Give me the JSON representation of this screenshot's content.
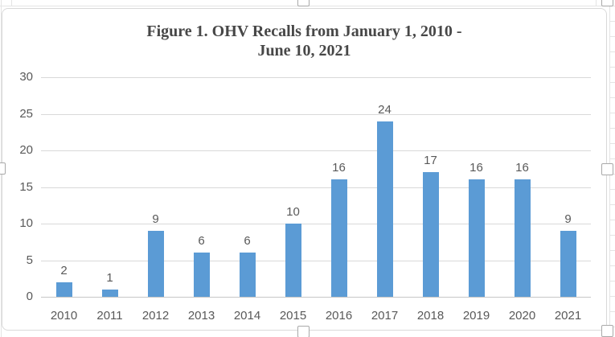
{
  "chart_data": {
    "type": "bar",
    "title": "Figure 1. OHV Recalls from January 1, 2010 - June 10, 2021",
    "title_lines": [
      "Figure 1. OHV Recalls from January 1, 2010 -",
      "June 10, 2021"
    ],
    "categories": [
      "2010",
      "2011",
      "2012",
      "2013",
      "2014",
      "2015",
      "2016",
      "2017",
      "2018",
      "2019",
      "2020",
      "2021"
    ],
    "values": [
      2,
      1,
      9,
      6,
      6,
      10,
      16,
      24,
      17,
      16,
      16,
      9
    ],
    "y_ticks": [
      0,
      5,
      10,
      15,
      20,
      25,
      30
    ],
    "ylim": [
      0,
      30
    ],
    "xlabel": "",
    "ylabel": "",
    "legend": "none",
    "grid": true,
    "data_labels_shown": true,
    "colors": {
      "bar": "#5B9BD5",
      "gridline": "#D9D9D9",
      "axis_line": "#C6C6C6",
      "tick_text": "#595959",
      "title_text": "#474747",
      "chart_border": "#D9D9D9",
      "sheet_gridline": "#E4E4E4",
      "selection_handle_border": "#A9A9A9"
    }
  }
}
